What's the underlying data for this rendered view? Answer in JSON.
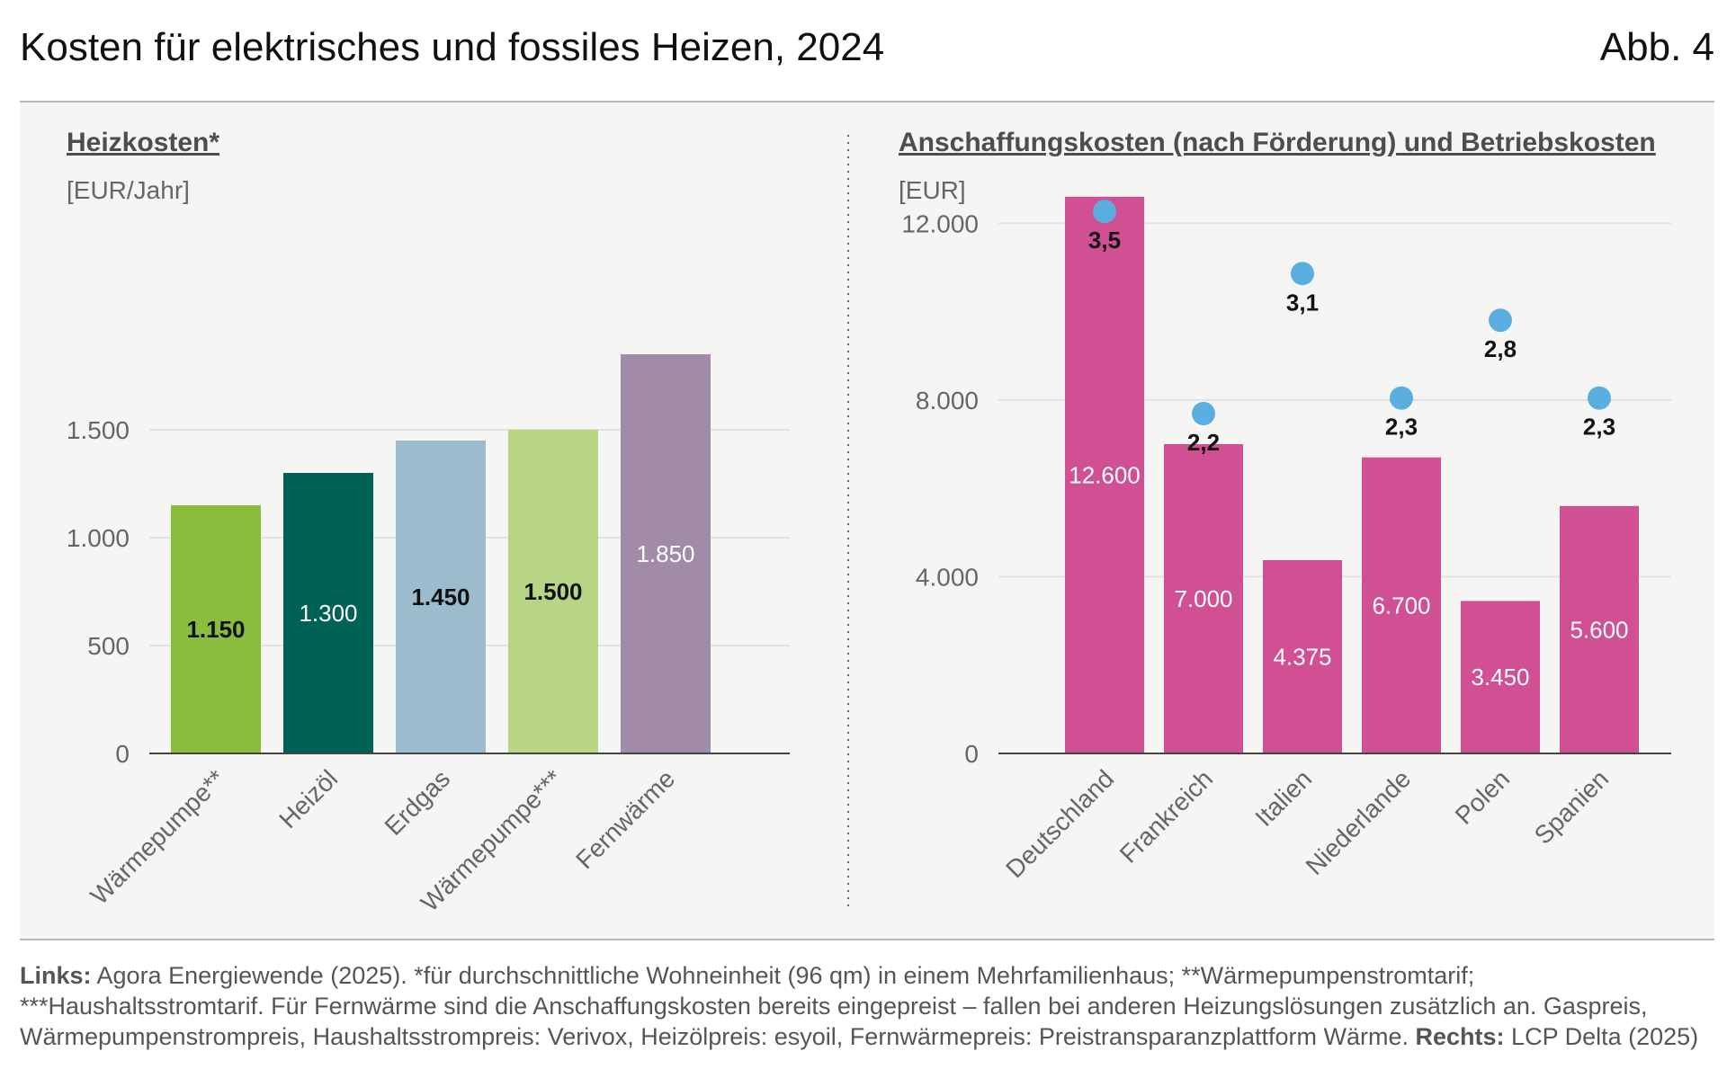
{
  "header": {
    "title": "Kosten für elektrisches und fossiles Heizen, 2024",
    "figure_no": "Abb. 4"
  },
  "left": {
    "subtitle": "Heizkosten*",
    "unit": "[EUR/Jahr]"
  },
  "right": {
    "subtitle": "Anschaffungskosten (nach Förderung) und Betriebskosten",
    "unit": "[EUR]"
  },
  "chart_data": [
    {
      "type": "bar",
      "title": "Heizkosten*",
      "ylabel": "[EUR/Jahr]",
      "ylim": [
        0,
        2000
      ],
      "yticks": [
        0,
        500,
        1000,
        1500
      ],
      "ytick_labels": [
        "0",
        "500",
        "1.000",
        "1.500"
      ],
      "grid": true,
      "categories": [
        "Wärmepumpe**",
        "Heizöl",
        "Erdgas",
        "Wärmepumpe***",
        "Fernwärme"
      ],
      "values": [
        1150,
        1300,
        1450,
        1500,
        1850
      ],
      "value_labels": [
        "1.150",
        "1.300",
        "1.450",
        "1.500",
        "1.850"
      ],
      "colors": [
        "#8bbd3c",
        "#006155",
        "#9bbccc",
        "#b8d585",
        "#a18ba9"
      ],
      "label_colors": [
        "#111111",
        "#ffffff",
        "#111111",
        "#111111",
        "#ffffff"
      ]
    },
    {
      "type": "bar",
      "title": "Anschaffungskosten (nach Förderung) und Betriebskosten",
      "ylabel": "[EUR]",
      "ylim": [
        0,
        14000
      ],
      "yticks": [
        0,
        4000,
        8000,
        12000
      ],
      "ytick_labels": [
        "0",
        "4.000",
        "8.000",
        "12.000"
      ],
      "grid": true,
      "categories": [
        "Deutschland",
        "Frankreich",
        "Italien",
        "Niederlande",
        "Polen",
        "Spanien"
      ],
      "values": [
        12600,
        7000,
        4375,
        6700,
        3450,
        5600
      ],
      "value_labels": [
        "12.600",
        "7.000",
        "4.375",
        "6.700",
        "3.450",
        "5.600"
      ],
      "bar_color": "#d14f93",
      "dots": {
        "values": [
          3.5,
          2.2,
          3.1,
          2.3,
          2.8,
          2.3
        ],
        "labels": [
          "3,5",
          "2,2",
          "3,1",
          "2,3",
          "2,8",
          "2,3"
        ],
        "color": "#5aaee0"
      }
    }
  ],
  "footer": {
    "links_label": "Links:",
    "links_text": " Agora Energiewende (2025). *für durchschnittliche Wohneinheit (96 qm) in einem Mehrfamilienhaus; **Wärmepumpenstromtarif; ***Haushaltsstromtarif. Für Fernwärme sind die Anschaffungskosten bereits eingepreist – fallen bei anderen Heizungslösungen zusätzlich an. Gaspreis, Wärmepumpenstrompreis, Haushaltsstrompreis: Verivox, Heizölpreis: esyoil, Fernwärmepreis: Preistransparanzplattform Wärme.",
    "rechts_label": "Rechts:",
    "rechts_text": " LCP Delta (2025)"
  }
}
